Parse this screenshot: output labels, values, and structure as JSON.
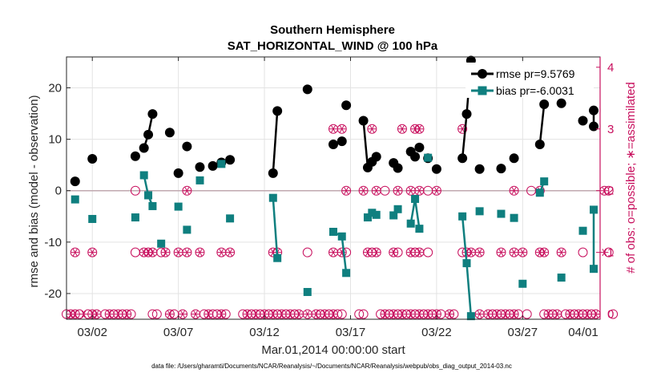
{
  "chart_data": {
    "type": "scatter",
    "title": "Southern Hemisphere",
    "subtitle": "SAT_HORIZONTAL_WIND @ 100 hPa",
    "xlabel": "Mar.01,2014 00:00:00 start",
    "ylabel": "rmse and bias (model - observation)",
    "y2label": "# of obs: o=possible; ∗=assimilated",
    "xlim": [
      0.5,
      31.5
    ],
    "ylim": [
      -25,
      26
    ],
    "y2lim": [
      -0.0833,
      4.1667
    ],
    "x_ticks": [
      {
        "value": 2,
        "label": "03/02"
      },
      {
        "value": 7,
        "label": "03/07"
      },
      {
        "value": 12,
        "label": "03/12"
      },
      {
        "value": 17,
        "label": "03/17"
      },
      {
        "value": 22,
        "label": "03/22"
      },
      {
        "value": 27,
        "label": "03/27"
      },
      {
        "value": 32,
        "label": "04/01"
      }
    ],
    "y_ticks": [
      {
        "value": -20,
        "label": "-20"
      },
      {
        "value": -10,
        "label": "-10"
      },
      {
        "value": 0,
        "label": "0"
      },
      {
        "value": 10,
        "label": "10"
      },
      {
        "value": 20,
        "label": "20"
      }
    ],
    "y2_ticks": [
      {
        "value": 0,
        "label": "0"
      },
      {
        "value": 1,
        "label": "1"
      },
      {
        "value": 2,
        "label": "2"
      },
      {
        "value": 3,
        "label": "3"
      },
      {
        "value": 4,
        "label": "4"
      }
    ],
    "legend_position": "top-right",
    "datafile": "data file: /Users/gharamti/Documents/NCAR/Reanalysis/~/Documents/NCAR/Reanalysis/webpub/obs_diag_output_2014-03.nc",
    "colors": {
      "rmse": "#000000",
      "bias": "#0f7f7f",
      "obs": "#c8105e",
      "zero_line": "#c0a9b0",
      "grid": "#e3e3e3"
    },
    "series": [
      {
        "name": "rmse pr=9.5769",
        "key": "rmse",
        "segments": [
          [
            [
              1.0,
              1.8
            ]
          ],
          [
            [
              2.0,
              6.2
            ]
          ],
          [
            [
              4.5,
              6.7
            ]
          ],
          [
            [
              5.0,
              8.3
            ],
            [
              5.25,
              10.9
            ],
            [
              5.5,
              14.9
            ]
          ],
          [
            [
              6.5,
              11.3
            ]
          ],
          [
            [
              7.0,
              3.4
            ]
          ],
          [
            [
              7.5,
              8.6
            ]
          ],
          [
            [
              8.25,
              4.6
            ]
          ],
          [
            [
              9.0,
              4.8
            ]
          ],
          [
            [
              9.5,
              5.5
            ],
            [
              10.0,
              6.0
            ]
          ],
          [
            [
              12.5,
              3.4
            ],
            [
              12.75,
              15.5
            ]
          ],
          [
            [
              14.5,
              19.7
            ]
          ],
          [
            [
              16.0,
              9.0
            ],
            [
              16.5,
              9.6
            ]
          ],
          [
            [
              16.75,
              16.6
            ]
          ],
          [
            [
              17.75,
              13.6
            ],
            [
              18.0,
              4.5
            ]
          ],
          [
            [
              18.25,
              5.6
            ],
            [
              18.5,
              6.6
            ]
          ],
          [
            [
              19.5,
              5.4
            ],
            [
              19.75,
              4.4
            ]
          ],
          [
            [
              20.5,
              7.6
            ],
            [
              20.75,
              6.6
            ]
          ],
          [
            [
              21.0,
              8.4
            ]
          ],
          [
            [
              21.5,
              6.3
            ]
          ],
          [
            [
              22.0,
              4.2
            ]
          ],
          [
            [
              23.5,
              6.3
            ],
            [
              23.75,
              14.9
            ],
            [
              24.0,
              25.3
            ]
          ],
          [
            [
              24.5,
              4.2
            ]
          ],
          [
            [
              25.75,
              4.3
            ]
          ],
          [
            [
              26.5,
              6.3
            ]
          ],
          [
            [
              27.5,
              20.6
            ]
          ],
          [
            [
              28.0,
              9.0
            ],
            [
              28.25,
              16.8
            ]
          ],
          [
            [
              29.25,
              17.0
            ]
          ],
          [
            [
              30.5,
              13.6
            ]
          ],
          [
            [
              31.75,
              15.6
            ],
            [
              32.0,
              12.5
            ]
          ]
        ]
      },
      {
        "name": "bias pr=-6.0031",
        "key": "bias",
        "segments": [
          [
            [
              1.0,
              -1.7
            ]
          ],
          [
            [
              2.0,
              -5.5
            ]
          ],
          [
            [
              4.5,
              -5.2
            ]
          ],
          [
            [
              5.0,
              3.0
            ],
            [
              5.25,
              -0.9
            ],
            [
              5.5,
              -3.0
            ]
          ],
          [
            [
              6.0,
              -10.3
            ]
          ],
          [
            [
              7.0,
              -3.1
            ]
          ],
          [
            [
              7.5,
              -7.6
            ]
          ],
          [
            [
              8.25,
              2.0
            ]
          ],
          [
            [
              9.5,
              5.2
            ]
          ],
          [
            [
              10.0,
              -5.4
            ]
          ],
          [
            [
              12.5,
              -1.4
            ],
            [
              12.75,
              -13.1
            ]
          ],
          [
            [
              14.5,
              -19.7
            ]
          ],
          [
            [
              16.0,
              -8.0
            ],
            [
              16.5,
              -8.9
            ],
            [
              16.75,
              -16.0
            ]
          ],
          [
            [
              18.0,
              -5.2
            ],
            [
              18.25,
              -4.3
            ]
          ],
          [
            [
              18.5,
              -4.7
            ]
          ],
          [
            [
              19.5,
              -4.8
            ],
            [
              19.75,
              -3.6
            ]
          ],
          [
            [
              20.5,
              -6.4
            ],
            [
              20.75,
              -1.6
            ],
            [
              21.0,
              -7.4
            ]
          ],
          [
            [
              21.5,
              6.4
            ]
          ],
          [
            [
              23.5,
              -5.0
            ],
            [
              23.75,
              -14.1
            ],
            [
              24.0,
              -24.4
            ]
          ],
          [
            [
              24.5,
              -4.0
            ]
          ],
          [
            [
              25.75,
              -4.5
            ]
          ],
          [
            [
              26.5,
              -5.3
            ]
          ],
          [
            [
              27.0,
              -18.1
            ]
          ],
          [
            [
              28.0,
              -0.4
            ],
            [
              28.25,
              1.8
            ]
          ],
          [
            [
              29.25,
              -16.9
            ]
          ],
          [
            [
              30.5,
              -7.8
            ]
          ],
          [
            [
              31.75,
              -15.2
            ],
            [
              32.0,
              -3.7
            ]
          ]
        ]
      }
    ],
    "obs_possible": [
      [
        0.5,
        0
      ],
      [
        0.75,
        0
      ],
      [
        1.0,
        0
      ],
      [
        1.25,
        0
      ],
      [
        1.75,
        0
      ],
      [
        2.0,
        0
      ],
      [
        2.25,
        0
      ],
      [
        2.75,
        0
      ],
      [
        3.0,
        0
      ],
      [
        3.25,
        0
      ],
      [
        3.5,
        0
      ],
      [
        3.75,
        0
      ],
      [
        4.0,
        0
      ],
      [
        4.25,
        0
      ],
      [
        5.5,
        0
      ],
      [
        5.75,
        0
      ],
      [
        6.5,
        0
      ],
      [
        6.75,
        0
      ],
      [
        7.25,
        0
      ],
      [
        8.0,
        0
      ],
      [
        8.5,
        0
      ],
      [
        8.75,
        0
      ],
      [
        9.0,
        0
      ],
      [
        9.25,
        0
      ],
      [
        9.5,
        0
      ],
      [
        9.75,
        0
      ],
      [
        10.75,
        0
      ],
      [
        11.0,
        0
      ],
      [
        11.25,
        0
      ],
      [
        11.5,
        0
      ],
      [
        11.75,
        0
      ],
      [
        12.0,
        0
      ],
      [
        12.25,
        0
      ],
      [
        12.5,
        0
      ],
      [
        12.75,
        0
      ],
      [
        13.0,
        0
      ],
      [
        13.25,
        0
      ],
      [
        13.5,
        0
      ],
      [
        13.75,
        0
      ],
      [
        14.0,
        0
      ],
      [
        14.5,
        0
      ],
      [
        15.0,
        0
      ],
      [
        15.25,
        0
      ],
      [
        15.5,
        0
      ],
      [
        15.75,
        0
      ],
      [
        16.0,
        0
      ],
      [
        16.25,
        0
      ],
      [
        16.5,
        0
      ],
      [
        17.5,
        0
      ],
      [
        17.75,
        0
      ],
      [
        18.75,
        0
      ],
      [
        19.0,
        0
      ],
      [
        19.25,
        0
      ],
      [
        19.5,
        0
      ],
      [
        19.75,
        0
      ],
      [
        20.0,
        0
      ],
      [
        20.25,
        0
      ],
      [
        20.5,
        0
      ],
      [
        20.75,
        0
      ],
      [
        21.0,
        0
      ],
      [
        21.25,
        0
      ],
      [
        21.5,
        0
      ],
      [
        21.75,
        0
      ],
      [
        22.0,
        0
      ],
      [
        22.25,
        0
      ],
      [
        22.75,
        0
      ],
      [
        23.0,
        0
      ],
      [
        24.5,
        0
      ],
      [
        25.0,
        0
      ],
      [
        25.25,
        0
      ],
      [
        25.5,
        0
      ],
      [
        25.75,
        0
      ],
      [
        26.0,
        0
      ],
      [
        26.25,
        0
      ],
      [
        26.5,
        0
      ],
      [
        26.75,
        0
      ],
      [
        27.25,
        0
      ],
      [
        28.25,
        0
      ],
      [
        28.5,
        0
      ],
      [
        28.75,
        0
      ],
      [
        29.0,
        0
      ],
      [
        29.5,
        0
      ],
      [
        29.75,
        0
      ],
      [
        30.0,
        0
      ],
      [
        30.25,
        0
      ],
      [
        30.5,
        0
      ],
      [
        30.75,
        0
      ],
      [
        31.0,
        0
      ],
      [
        31.25,
        0
      ],
      [
        32.25,
        0
      ],
      [
        1.0,
        1
      ],
      [
        2.0,
        1
      ],
      [
        4.5,
        1
      ],
      [
        5.0,
        1
      ],
      [
        5.25,
        1
      ],
      [
        5.5,
        1
      ],
      [
        6.0,
        1
      ],
      [
        6.25,
        1
      ],
      [
        7.0,
        1
      ],
      [
        7.5,
        1
      ],
      [
        8.25,
        1
      ],
      [
        9.5,
        1
      ],
      [
        10.0,
        1
      ],
      [
        12.5,
        1
      ],
      [
        12.75,
        1
      ],
      [
        14.5,
        1
      ],
      [
        16.0,
        1
      ],
      [
        16.5,
        1
      ],
      [
        16.75,
        1
      ],
      [
        18.0,
        1
      ],
      [
        18.25,
        1
      ],
      [
        18.5,
        1
      ],
      [
        19.5,
        1
      ],
      [
        19.75,
        1
      ],
      [
        20.5,
        1
      ],
      [
        20.75,
        1
      ],
      [
        21.0,
        1
      ],
      [
        21.5,
        1
      ],
      [
        23.5,
        1
      ],
      [
        23.75,
        1
      ],
      [
        24.0,
        1
      ],
      [
        24.5,
        1
      ],
      [
        25.75,
        1
      ],
      [
        26.5,
        1
      ],
      [
        27.0,
        1
      ],
      [
        28.0,
        1
      ],
      [
        28.25,
        1
      ],
      [
        29.25,
        1
      ],
      [
        30.5,
        1
      ],
      [
        32.0,
        1
      ],
      [
        4.5,
        2
      ],
      [
        7.5,
        2
      ],
      [
        16.75,
        2
      ],
      [
        17.75,
        2
      ],
      [
        18.5,
        2
      ],
      [
        19.0,
        2
      ],
      [
        19.75,
        2
      ],
      [
        20.5,
        2
      ],
      [
        21.0,
        2
      ],
      [
        21.5,
        2
      ],
      [
        22.0,
        2
      ],
      [
        26.5,
        2
      ],
      [
        27.5,
        2
      ],
      [
        28.0,
        2
      ],
      [
        31.75,
        2
      ],
      [
        32.0,
        2
      ],
      [
        16.0,
        3
      ],
      [
        16.5,
        3
      ],
      [
        18.25,
        3
      ],
      [
        20.0,
        3
      ],
      [
        20.75,
        3
      ],
      [
        21.0,
        3
      ],
      [
        23.5,
        3
      ]
    ],
    "obs_assimilated": [
      [
        0.75,
        0
      ],
      [
        1.0,
        0
      ],
      [
        1.5,
        0
      ],
      [
        2.0,
        0
      ],
      [
        2.25,
        0
      ],
      [
        3.0,
        0
      ],
      [
        3.5,
        0
      ],
      [
        4.0,
        0
      ],
      [
        6.5,
        0
      ],
      [
        7.25,
        0
      ],
      [
        8.0,
        0
      ],
      [
        8.75,
        0
      ],
      [
        9.5,
        0
      ],
      [
        11.0,
        0
      ],
      [
        11.5,
        0
      ],
      [
        12.0,
        0
      ],
      [
        12.5,
        0
      ],
      [
        13.0,
        0
      ],
      [
        13.5,
        0
      ],
      [
        14.0,
        0
      ],
      [
        14.5,
        0
      ],
      [
        15.0,
        0
      ],
      [
        15.5,
        0
      ],
      [
        16.0,
        0
      ],
      [
        19.0,
        0
      ],
      [
        19.5,
        0
      ],
      [
        20.0,
        0
      ],
      [
        20.5,
        0
      ],
      [
        21.0,
        0
      ],
      [
        21.5,
        0
      ],
      [
        22.0,
        0
      ],
      [
        22.75,
        0
      ],
      [
        24.5,
        0
      ],
      [
        25.0,
        0
      ],
      [
        25.5,
        0
      ],
      [
        26.0,
        0
      ],
      [
        26.5,
        0
      ],
      [
        28.5,
        0
      ],
      [
        29.0,
        0
      ],
      [
        29.75,
        0
      ],
      [
        30.25,
        0
      ],
      [
        30.75,
        0
      ],
      [
        31.25,
        0
      ],
      [
        1.0,
        1
      ],
      [
        2.0,
        1
      ],
      [
        5.0,
        1
      ],
      [
        5.25,
        1
      ],
      [
        5.5,
        1
      ],
      [
        6.25,
        1
      ],
      [
        7.0,
        1
      ],
      [
        7.5,
        1
      ],
      [
        8.25,
        1
      ],
      [
        9.5,
        1
      ],
      [
        10.0,
        1
      ],
      [
        12.5,
        1
      ],
      [
        12.75,
        1
      ],
      [
        16.0,
        1
      ],
      [
        16.5,
        1
      ],
      [
        18.0,
        1
      ],
      [
        18.5,
        1
      ],
      [
        19.5,
        1
      ],
      [
        20.5,
        1
      ],
      [
        21.0,
        1
      ],
      [
        23.75,
        1
      ],
      [
        24.0,
        1
      ],
      [
        24.5,
        1
      ],
      [
        25.75,
        1
      ],
      [
        26.5,
        1
      ],
      [
        27.0,
        1
      ],
      [
        28.0,
        1
      ],
      [
        28.25,
        1
      ],
      [
        29.25,
        1
      ],
      [
        31.75,
        1
      ],
      [
        7.5,
        2
      ],
      [
        16.75,
        2
      ],
      [
        17.75,
        2
      ],
      [
        18.5,
        2
      ],
      [
        19.75,
        2
      ],
      [
        20.5,
        2
      ],
      [
        21.0,
        2
      ],
      [
        22.0,
        2
      ],
      [
        26.5,
        2
      ],
      [
        28.0,
        2
      ],
      [
        31.75,
        2
      ],
      [
        16.0,
        3
      ],
      [
        16.5,
        3
      ],
      [
        18.25,
        3
      ],
      [
        20.0,
        3
      ],
      [
        20.75,
        3
      ],
      [
        21.0,
        3
      ],
      [
        23.5,
        3
      ]
    ]
  }
}
